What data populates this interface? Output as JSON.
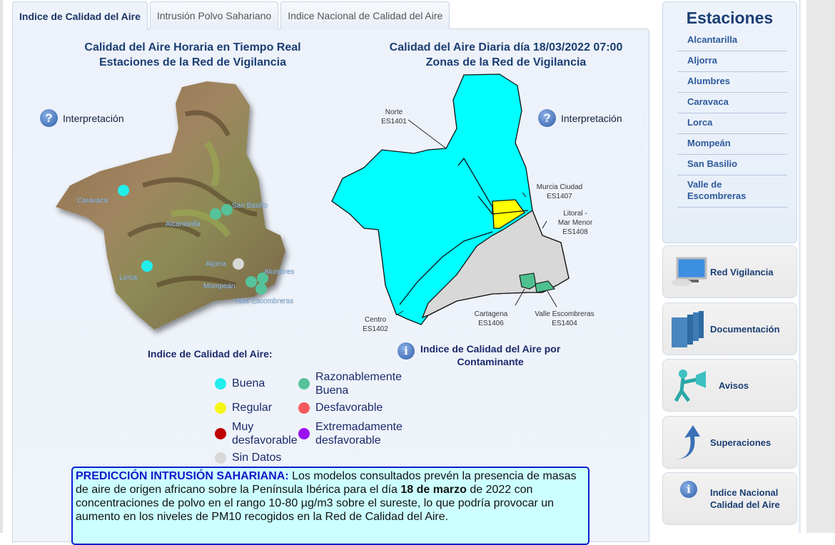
{
  "tabs": [
    {
      "label": "Indice de Calidad del Aire",
      "active": true
    },
    {
      "label": "Intrusión Polvo Sahariano"
    },
    {
      "label": "Indice Nacional de Calidad del Aire"
    }
  ],
  "left_map": {
    "title1": "Calidad del Aire Horaria en Tiempo Real",
    "title2": "Estaciones de la Red de Vigilancia",
    "interp": "Interpretación",
    "stations": [
      {
        "name": "Caravaca",
        "status": "Buena"
      },
      {
        "name": "San Basilio",
        "status": "Razonablemente Buena"
      },
      {
        "name": "Alcantarilla",
        "status": "Razonablemente Buena"
      },
      {
        "name": "Aljorra",
        "status": "Sin Datos"
      },
      {
        "name": "Alumbres",
        "status": "Razonablemente Buena"
      },
      {
        "name": "Mompeán",
        "status": "Razonablemente Buena"
      },
      {
        "name": "Valle Escombreras",
        "status": "Razonablemente Buena"
      },
      {
        "name": "Lorca",
        "status": "Buena"
      }
    ]
  },
  "right_map": {
    "title1": "Calidad del Aire Diaria día 18/03/2022 07:00",
    "title2": "Zonas de la Red de Vigilancia",
    "interp": "Interpretación",
    "zones": [
      {
        "name": "Norte",
        "code": "ES1401",
        "status": "Buena"
      },
      {
        "name": "Centro",
        "code": "ES1402",
        "status": "Buena"
      },
      {
        "name": "Murcia Ciudad",
        "code": "ES1407",
        "status": "Regular"
      },
      {
        "name": "Litoral - Mar Menor",
        "name1": "Litoral -",
        "name2": "Mar Menor",
        "code": "ES1408",
        "status": "Sin Datos"
      },
      {
        "name": "Cartagena",
        "code": "ES1406",
        "status": "Razonablemente Buena"
      },
      {
        "name": "Valle Escombreras",
        "code": "ES1404",
        "status": "Razonablemente Buena"
      }
    ]
  },
  "legend": {
    "title": "Indice de Calidad del Aire:",
    "items": [
      {
        "label": "Buena",
        "color": "#22eeee"
      },
      {
        "label": "Razonablemente Buena",
        "l1": "Razonablemente",
        "l2": "Buena",
        "color": "#55c39a"
      },
      {
        "label": "Regular",
        "color": "#f5f514"
      },
      {
        "label": "Desfavorable",
        "color": "#f25a5f"
      },
      {
        "label": "Muy desfavorable",
        "l1": "Muy",
        "l2": "desfavorable",
        "color": "#c00000"
      },
      {
        "label": "Extremadamente desfavorable",
        "l1": "Extremadamente",
        "l2": "desfavorable",
        "color": "#9b10f0"
      },
      {
        "label": "Sin Datos",
        "color": "#d8d8d8"
      }
    ]
  },
  "contaminante": {
    "line1": "Indice de Calidad del Aire por",
    "line2": "Contaminante"
  },
  "prediction": {
    "lead": "PREDICCIÓN INTRUSIÓN SAHARIANA:",
    "text1": " Los modelos consultados prevén la presencia de masas de aire de origen africano sobre la Península Ibérica para el día ",
    "bold": "18 de marzo",
    "text2": " de 2022 con concentraciones de polvo en el rango 10-80 µg/m3 sobre el sureste, lo que podría provocar un aumento en los niveles de PM10 recogidos en la Red de Calidad del Aire."
  },
  "estaciones": {
    "title": "Estaciones",
    "items": [
      "Alcantarilla",
      "Aljorra",
      "Alumbres",
      "Caravaca",
      "Lorca",
      "Mompeán",
      "San Basilio",
      "Valle de Escombreras"
    ]
  },
  "side_buttons": [
    {
      "l1": "Red Vigilancia",
      "icon": "computer-icon"
    },
    {
      "l1": "Documentación",
      "icon": "books-icon"
    },
    {
      "l1": "Avisos",
      "icon": "megaphone-figure-icon"
    },
    {
      "l1": "Superaciones",
      "icon": "up-arrow-icon"
    },
    {
      "l1": "Indice Nacional",
      "l2": "Calidad del Aire",
      "icon": "info-icon"
    }
  ]
}
